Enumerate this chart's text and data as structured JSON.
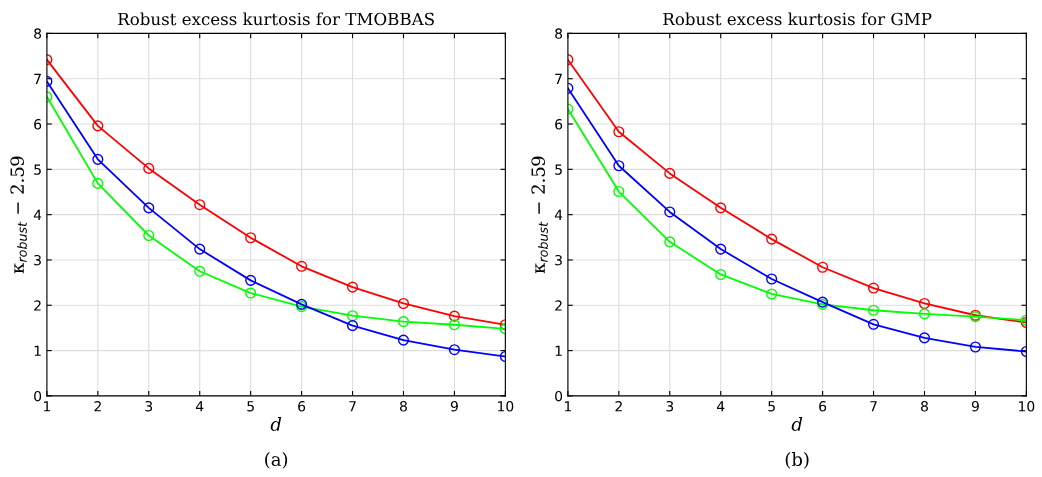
{
  "chart_data": [
    {
      "type": "line",
      "title": "Robust excess kurtosis for TMOBBAS",
      "xlabel": "d",
      "ylabel": "κ$_{robust}$ − 2.59",
      "annotations": [
        "(a)"
      ],
      "x": [
        1,
        2,
        3,
        4,
        5,
        6,
        7,
        8,
        9,
        10
      ],
      "xlim": [
        1,
        10
      ],
      "xticks": [
        1,
        2,
        3,
        4,
        5,
        6,
        7,
        8,
        9,
        10
      ],
      "ylim": [
        0,
        8
      ],
      "yticks": [
        0,
        1,
        2,
        3,
        4,
        5,
        6,
        7,
        8
      ],
      "grid": true,
      "marker": "circle",
      "line_style": "solid",
      "series": [
        {
          "color": "#ff0000",
          "values": [
            7.42,
            5.96,
            5.02,
            4.22,
            3.49,
            2.86,
            2.4,
            2.04,
            1.76,
            1.57
          ]
        },
        {
          "color": "#00ff00",
          "values": [
            6.6,
            4.69,
            3.54,
            2.75,
            2.27,
            1.97,
            1.77,
            1.64,
            1.57,
            1.48
          ]
        },
        {
          "color": "#0000ff",
          "values": [
            6.94,
            5.22,
            4.15,
            3.24,
            2.55,
            2.02,
            1.55,
            1.23,
            1.02,
            0.87
          ]
        }
      ]
    },
    {
      "type": "line",
      "title": "Robust excess kurtosis for GMP",
      "xlabel": "d",
      "ylabel": "κ$_{robust}$ − 2.59",
      "annotations": [
        "(b)"
      ],
      "x": [
        1,
        2,
        3,
        4,
        5,
        6,
        7,
        8,
        9,
        10
      ],
      "xlim": [
        1,
        10
      ],
      "xticks": [
        1,
        2,
        3,
        4,
        5,
        6,
        7,
        8,
        9,
        10
      ],
      "ylim": [
        0,
        8
      ],
      "yticks": [
        0,
        1,
        2,
        3,
        4,
        5,
        6,
        7,
        8
      ],
      "grid": true,
      "marker": "circle",
      "line_style": "solid",
      "series": [
        {
          "color": "#ff0000",
          "values": [
            7.42,
            5.83,
            4.91,
            4.15,
            3.46,
            2.84,
            2.38,
            2.04,
            1.78,
            1.62
          ]
        },
        {
          "color": "#00ff00",
          "values": [
            6.33,
            4.51,
            3.4,
            2.68,
            2.25,
            2.02,
            1.89,
            1.81,
            1.75,
            1.67
          ]
        },
        {
          "color": "#0000ff",
          "values": [
            6.79,
            5.08,
            4.06,
            3.24,
            2.58,
            2.07,
            1.58,
            1.28,
            1.08,
            0.98
          ]
        }
      ]
    }
  ]
}
